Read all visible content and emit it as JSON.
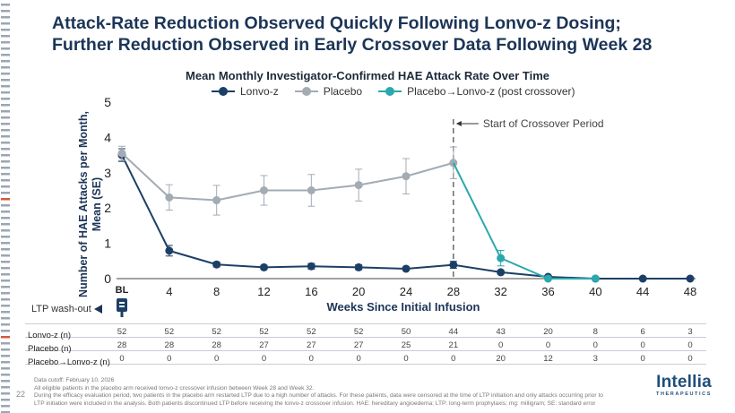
{
  "header": {
    "title_line1": "Attack-Rate Reduction Observed Quickly Following Lonvo-z Dosing;",
    "title_line2": "Further Reduction Observed in Early Crossover Data Following Week 28"
  },
  "chart_data": {
    "type": "line",
    "title": "Mean Monthly Investigator-Confirmed HAE Attack Rate Over Time",
    "xlabel": "Weeks Since Initial Infusion",
    "ylabel": "Number of HAE Attacks per Month, Mean (SE)",
    "ylim": [
      0,
      5
    ],
    "yticks": [
      "0",
      "1",
      "2",
      "3",
      "4",
      "5"
    ],
    "x": [
      0,
      4,
      8,
      12,
      16,
      20,
      24,
      28,
      32,
      36,
      40,
      44,
      48
    ],
    "xtick_labels": [
      "BL",
      "4",
      "8",
      "12",
      "16",
      "20",
      "24",
      "28",
      "32",
      "36",
      "40",
      "44",
      "48"
    ],
    "series": [
      {
        "name": "Lonvo-z",
        "color": "#1c3f66",
        "x": [
          0,
          4,
          8,
          12,
          16,
          20,
          24,
          28,
          32,
          36,
          40,
          44,
          48
        ],
        "y": [
          3.5,
          0.79,
          0.4,
          0.32,
          0.35,
          0.32,
          0.28,
          0.39,
          0.18,
          0.05,
          0.0,
          0.0,
          0.0
        ],
        "se": [
          0.18,
          0.15,
          0.07,
          0.06,
          0.08,
          0.07,
          0.05,
          0.1,
          0.05,
          0.03,
          0,
          0,
          0
        ]
      },
      {
        "name": "Placebo",
        "color": "#a3abb3",
        "x": [
          0,
          4,
          8,
          12,
          16,
          20,
          24,
          28
        ],
        "y": [
          3.55,
          2.3,
          2.22,
          2.5,
          2.5,
          2.65,
          2.9,
          3.28
        ],
        "se": [
          0.2,
          0.36,
          0.42,
          0.42,
          0.45,
          0.45,
          0.5,
          0.45
        ]
      },
      {
        "name": "Placebo→Lonvo-z (post crossover)",
        "color": "#2aa8ad",
        "x": [
          28,
          32,
          36,
          40
        ],
        "y": [
          3.28,
          0.58,
          0.0,
          0.0
        ],
        "se": [
          0,
          0.22,
          0,
          0
        ]
      }
    ],
    "annotations": {
      "crossover_week": 28,
      "crossover_label": "Start of Crossover Period"
    }
  },
  "washout_label": "LTP wash-out",
  "n_table": {
    "rows": [
      {
        "label": "Lonvo-z (n)",
        "values": [
          "52",
          "52",
          "52",
          "52",
          "52",
          "52",
          "50",
          "44",
          "43",
          "20",
          "8",
          "6",
          "3"
        ]
      },
      {
        "label": "Placebo (n)",
        "values": [
          "28",
          "28",
          "28",
          "27",
          "27",
          "27",
          "25",
          "21",
          "0",
          "0",
          "0",
          "0",
          "0"
        ]
      },
      {
        "label": "Placebo→Lonvo-z (n)",
        "values": [
          "0",
          "0",
          "0",
          "0",
          "0",
          "0",
          "0",
          "0",
          "20",
          "12",
          "3",
          "0",
          "0"
        ]
      }
    ]
  },
  "footnotes": [
    "Data cutoff: February 10, 2026",
    "All eligible patients in the placebo arm received lonvo-z crossover infusion between Week 28 and Week 32.",
    "During the efficacy evaluation period, two patients in the placebo arm restarted LTP due to a high number of attacks. For these patients, data were censored at the time of LTP initiation and only attacks occurring prior to",
    "LTP initiation were included in the analysis. Both patients discontinued LTP before receiving the lonvo-z crossover infusion. HAE: hereditary angioedema; LTP: long-term prophylaxis; mg: milligram; SE: standard error"
  ],
  "page_number": "22",
  "logo": {
    "name": "Intellia",
    "tagline": "THERAPEUTICS"
  }
}
